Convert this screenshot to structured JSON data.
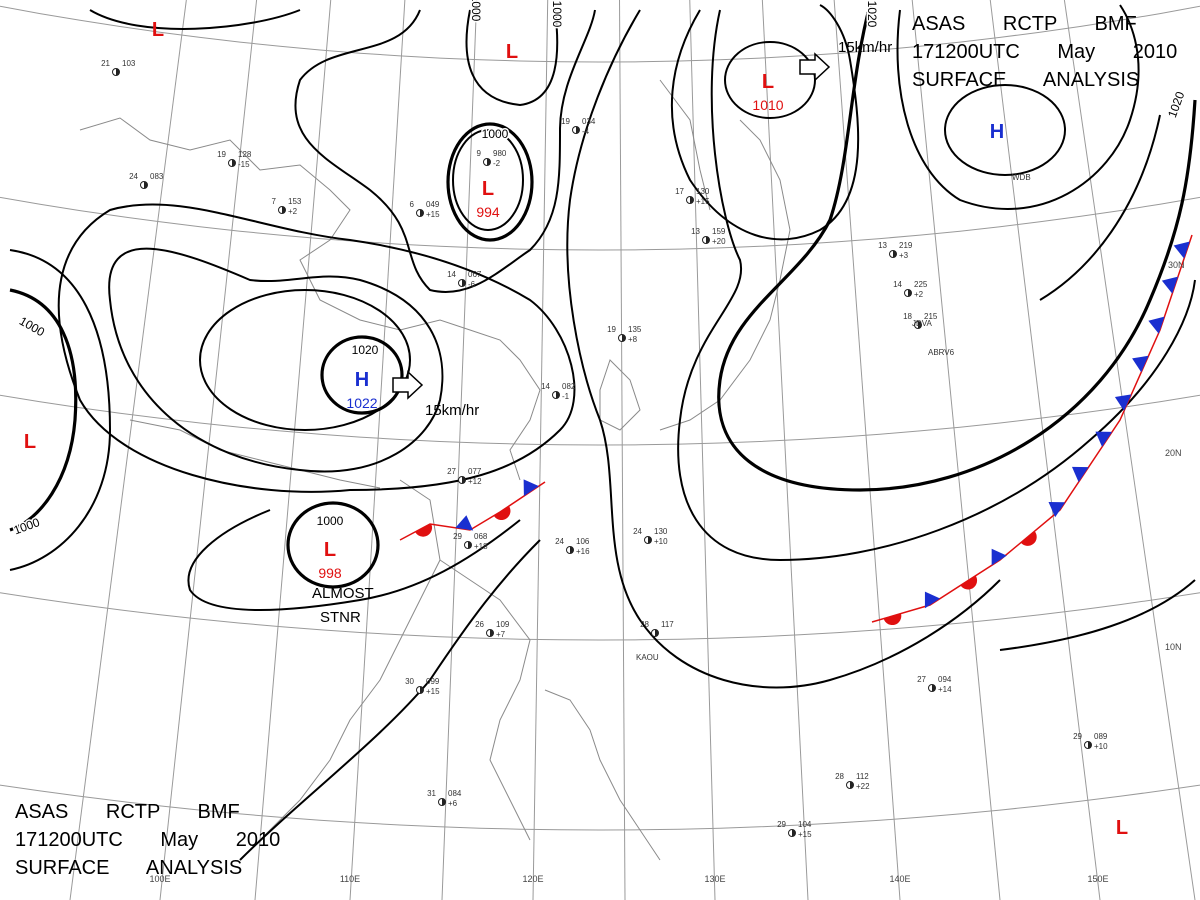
{
  "header": {
    "lines": [
      "ASAS RCTP BMF",
      "171200UTC May 2010",
      "SURFACE ANALYSIS"
    ]
  },
  "footer": {
    "lines": [
      "ASAS RCTP BMF",
      "171200UTC May 2010",
      "SURFACE ANALYSIS"
    ]
  },
  "pressure_centers": [
    {
      "symbol": "L"
    },
    {
      "symbol": "L"
    },
    {
      "symbol": "L",
      "value": 994
    },
    {
      "symbol": "L",
      "value": 1010
    },
    {
      "symbol": "H"
    },
    {
      "symbol": "H",
      "value": 1022
    },
    {
      "symbol": "L"
    },
    {
      "symbol": "L",
      "value": 998
    },
    {
      "symbol": "L"
    }
  ],
  "isobar_labels": [
    1000,
    1000,
    1000,
    1000,
    1000,
    1000,
    1020,
    1020,
    1020
  ],
  "motion_labels": [
    "15km/hr",
    "15km/hr"
  ],
  "front_note": [
    "ALMOST",
    "STNR"
  ],
  "latitude_labels": [
    "30N",
    "20N",
    "10N"
  ],
  "longitude_labels": [
    "100E",
    "110E",
    "120E",
    "130E",
    "140E",
    "150E"
  ],
  "station_ids": [
    "KAOU",
    "JDVA",
    "ABRV6",
    "WDB"
  ],
  "stations": [
    {
      "temp": 27,
      "pressure": "077",
      "tendency": "+12"
    },
    {
      "temp": 29,
      "pressure": "068",
      "tendency": "+18"
    },
    {
      "temp": 26,
      "pressure": "109",
      "tendency": "+7"
    },
    {
      "temp": 24,
      "pressure": "106",
      "tendency": "+16"
    },
    {
      "temp": 28,
      "pressure": "117"
    },
    {
      "temp": 30,
      "pressure": "099",
      "tendency": "+15"
    },
    {
      "temp": 31,
      "pressure": "084",
      "tendency": "+6"
    },
    {
      "temp": 24,
      "pressure": "130",
      "tendency": "+10"
    },
    {
      "temp": 27,
      "pressure": "094",
      "tendency": "+14"
    },
    {
      "temp": 29,
      "pressure": "089",
      "tendency": "+10"
    },
    {
      "temp": 28,
      "pressure": "112",
      "tendency": "+22"
    },
    {
      "temp": 29,
      "pressure": "104",
      "tendency": "+15"
    },
    {
      "temp": 18,
      "pressure": "215"
    },
    {
      "temp": 14,
      "pressure": "225",
      "tendency": "+2"
    },
    {
      "temp": 13,
      "pressure": "219",
      "tendency": "+3"
    },
    {
      "temp": 14,
      "pressure": "082",
      "tendency": "-1"
    },
    {
      "temp": 19,
      "pressure": "135",
      "tendency": "+8"
    },
    {
      "temp": 14,
      "pressure": "067",
      "tendency": "-6"
    },
    {
      "temp": 9,
      "pressure": "980",
      "tendency": "-2"
    },
    {
      "temp": 19,
      "pressure": "034",
      "tendency": "-4"
    },
    {
      "temp": 17,
      "pressure": "130",
      "tendency": "+15"
    },
    {
      "temp": 13,
      "pressure": "159",
      "tendency": "+20"
    },
    {
      "temp": 6,
      "pressure": "049",
      "tendency": "+15"
    },
    {
      "temp": 7,
      "pressure": "153",
      "tendency": "+2"
    },
    {
      "temp": 19,
      "pressure": "128",
      "tendency": "-15"
    },
    {
      "temp": 24,
      "pressure": "083"
    },
    {
      "temp": 21,
      "pressure": "103"
    }
  ]
}
